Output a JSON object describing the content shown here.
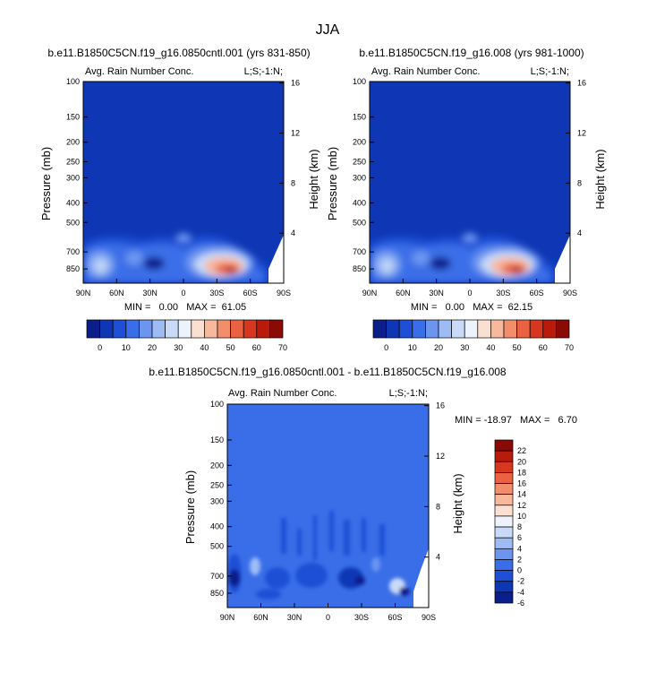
{
  "page": {
    "title": "JJA"
  },
  "charts": [
    {
      "id": "panel-1",
      "title": "b.e11.B1850C5CN.f19_g16.0850cntl.001 (yrs 831-850)",
      "field": "Avg. Rain Number Conc.",
      "corner": "L;S;-1:N;",
      "ylabel": "Pressure (mb)",
      "ylabel_right": "Height (km)",
      "stats": "MIN =   0.00   MAX =  61.05"
    },
    {
      "id": "panel-2",
      "title": "b.e11.B1850C5CN.f19_g16.008 (yrs 981-1000)",
      "field": "Avg. Rain Number Conc.",
      "corner": "L;S;-1:N;",
      "ylabel": "Pressure (mb)",
      "ylabel_right": "Height (km)",
      "stats": "MIN =   0.00   MAX =  62.15"
    },
    {
      "id": "panel-3",
      "title": "b.e11.B1850C5CN.f19_g16.0850cntl.001 - b.e11.B1850C5CN.f19_g16.008",
      "field": "Avg. Rain Number Conc.",
      "corner": "L;S;-1:N;",
      "ylabel": "Pressure (mb)",
      "ylabel_right": "Height (km)",
      "stats": "MIN = -18.97   MAX =   6.70"
    }
  ],
  "chart_data": {
    "type": "heatmap",
    "x_ticks": [
      "90N",
      "60N",
      "30N",
      "0",
      "30S",
      "60S",
      "90S"
    ],
    "pressure_ticks": [
      "100",
      "150",
      "200",
      "250",
      "300",
      "400",
      "500",
      "700",
      "850"
    ],
    "height_ticks": [
      "16",
      "12",
      "8",
      "4"
    ],
    "colorbar_main": {
      "labels": [
        "0",
        "10",
        "20",
        "30",
        "40",
        "50",
        "60",
        "70"
      ],
      "colors": [
        "#0a1f8a",
        "#0f37b5",
        "#1f4fd6",
        "#3a6ee8",
        "#6b95ef",
        "#9dbbf5",
        "#c9daf8",
        "#eef3fb",
        "#fbe0d2",
        "#f8b89c",
        "#f28e6c",
        "#ea6242",
        "#d7361f",
        "#b81a0c",
        "#8c0a05"
      ]
    },
    "colorbar_diff": {
      "labels": [
        "22",
        "20",
        "18",
        "16",
        "14",
        "12",
        "10",
        "8",
        "6",
        "4",
        "2",
        "0",
        "-2",
        "-4",
        "-6"
      ],
      "colors": [
        "#8c0a05",
        "#b81a0c",
        "#d7361f",
        "#ea6242",
        "#f28e6c",
        "#f8b89c",
        "#fbe0d2",
        "#eef3fb",
        "#c9daf8",
        "#9dbbf5",
        "#6b95ef",
        "#3a6ee8",
        "#1f4fd6",
        "#0f37b5",
        "#0a1f8a"
      ]
    },
    "background_colors": {
      "main": "#0f37b5",
      "diff": "#3a6ee8"
    }
  }
}
